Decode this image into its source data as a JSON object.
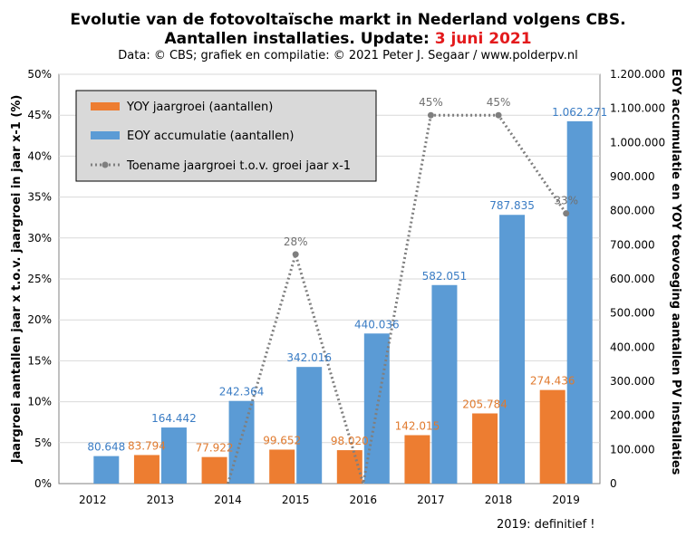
{
  "chart_data": {
    "type": "bar",
    "title_line1": "Evolutie van de fotovoltaïsche markt in Nederland volgens CBS.",
    "title_line2_prefix": "Aantallen installaties. Update:",
    "title_line2_date": "3 juni 2021",
    "credit": "Data: © CBS; grafiek en compilatie: © 2021 Peter J. Segaar / www.polderpv.nl",
    "footnote": "2019: definitief !",
    "ylabel_left": "Jaargroei aantallen jaar x t.o.v. jaargroei in jaar x-1 (%)",
    "ylabel_right": "EOY accumulatie en YOY toevoeging aantallen PV installaties",
    "y_left_ticks": [
      "0%",
      "5%",
      "10%",
      "15%",
      "20%",
      "25%",
      "30%",
      "35%",
      "40%",
      "45%",
      "50%"
    ],
    "y_right_ticks": [
      "0",
      "100.000",
      "200.000",
      "300.000",
      "400.000",
      "500.000",
      "600.000",
      "700.000",
      "800.000",
      "900.000",
      "1.000.000",
      "1.100.000",
      "1.200.000"
    ],
    "ylim_left": [
      0,
      50
    ],
    "ylim_right": [
      0,
      1200000
    ],
    "categories": [
      "2012",
      "2013",
      "2014",
      "2015",
      "2016",
      "2017",
      "2018",
      "2019"
    ],
    "series": [
      {
        "name": "YOY jaargroei (aantallen)",
        "color": "#ed7d31",
        "axis": "right",
        "values": [
          null,
          83794,
          77922,
          99652,
          98020,
          142015,
          205784,
          274436
        ],
        "labels": [
          "",
          "83.794",
          "77.922",
          "99.652",
          "98.020",
          "142.015",
          "205.784",
          "274.436"
        ]
      },
      {
        "name": "EOY accumulatie (aantallen)",
        "color": "#5b9bd5",
        "axis": "right",
        "values": [
          80648,
          164442,
          242364,
          342016,
          440036,
          582051,
          787835,
          1062271
        ],
        "labels": [
          "80.648",
          "164.442",
          "242.364",
          "342.016",
          "440.036",
          "582.051",
          "787.835",
          "1.062.271"
        ]
      },
      {
        "name": "Toename jaargroei t.o.v. groei jaar x-1",
        "color": "#7f7f7f",
        "axis": "left",
        "type": "line",
        "style": "dotted",
        "values": [
          null,
          null,
          -7,
          28,
          -2,
          45,
          45,
          33
        ],
        "labels": [
          "",
          "",
          "",
          "28%",
          "",
          "45%",
          "45%",
          "33%"
        ]
      }
    ],
    "legend_placement": "top-left",
    "grid": true
  }
}
